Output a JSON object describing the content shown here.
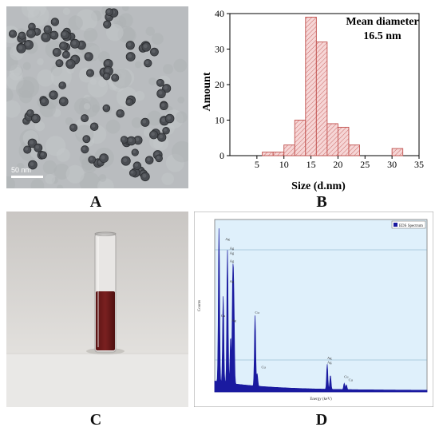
{
  "panels": {
    "a": {
      "label": "A",
      "scale_bar": "50 nm"
    },
    "b": {
      "label": "B"
    },
    "c": {
      "label": "C"
    },
    "d": {
      "label": "D"
    }
  },
  "chart_data": {
    "type": "bar",
    "annotation_line1": "Mean diameter",
    "annotation_line2": "16.5 nm",
    "xlabel": "Size (d.nm)",
    "ylabel": "Amount",
    "xlim": [
      0,
      35
    ],
    "ylim": [
      0,
      40
    ],
    "xticks": [
      5,
      10,
      15,
      20,
      25,
      30,
      35
    ],
    "yticks": [
      0,
      10,
      20,
      30,
      40
    ],
    "bins": [
      7,
      9,
      11,
      13,
      15,
      17,
      19,
      21,
      23,
      31
    ],
    "values": [
      1,
      1,
      3,
      10,
      39,
      32,
      9,
      8,
      3,
      2
    ],
    "bin_width": 2,
    "bar_fill": "#f6d6d6",
    "bar_stroke": "#c0504d",
    "grid": false
  },
  "eds": {
    "background": "#dff0fb",
    "legend_text": "EDS Spectrum",
    "peak_labels": [
      "Ag",
      "Ag",
      "Ag",
      "Ag",
      "Ag",
      "Ag",
      "Cu",
      "Cu",
      "Cu",
      "Ag",
      "Ag",
      "Cu",
      "Cu"
    ],
    "xlabel": "Energy (keV)",
    "ylabel": "Counts",
    "line_color": "#1a1aa0"
  }
}
